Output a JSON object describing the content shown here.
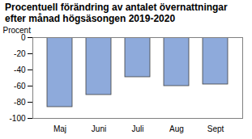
{
  "chart_data": {
    "type": "bar",
    "title": "Procentuell förändring av antalet övernattningar\nefter månad högsäsongen 2019-2020",
    "y_label": "Procent",
    "categories": [
      "Maj",
      "Juni",
      "Juli",
      "Aug",
      "Sept"
    ],
    "values": [
      -86,
      -71,
      -49,
      -60,
      -58
    ],
    "color": "#8eaadb",
    "ylim": [
      -100,
      0
    ],
    "yticks": [
      -100,
      -80,
      -60,
      -40,
      -20,
      0
    ],
    "grid": false
  }
}
